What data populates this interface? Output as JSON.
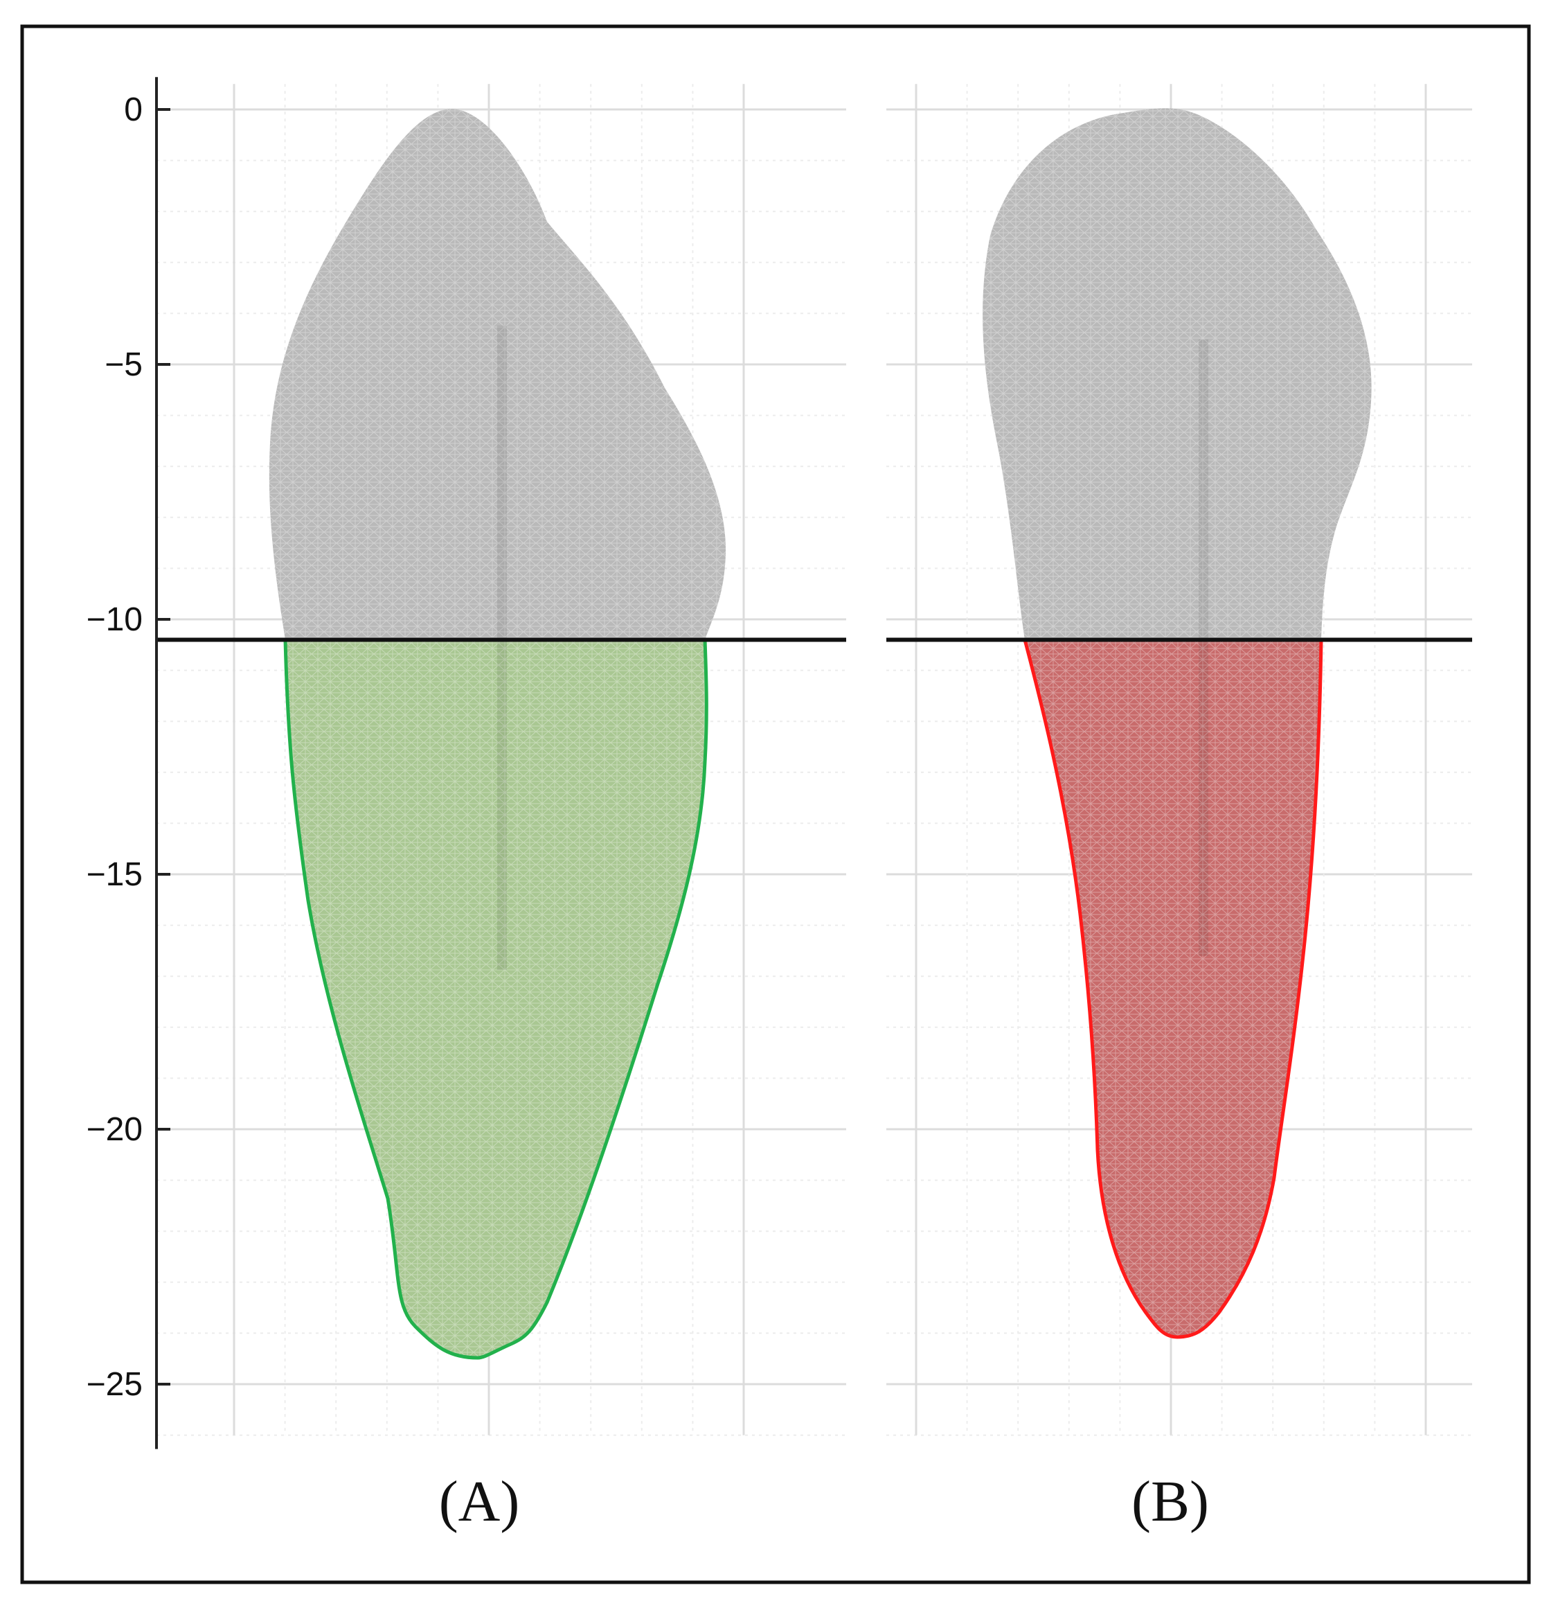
{
  "figure": {
    "y_axis": {
      "ticks": [
        0,
        -5,
        -10,
        -15,
        -20,
        -25
      ],
      "tick_labels": [
        "0",
        "−5",
        "−10",
        "−15",
        "−20",
        "−25"
      ],
      "range": [
        -26,
        0.5
      ]
    },
    "cut_level": -10.4,
    "panels": [
      {
        "id": "A",
        "caption": "(A)",
        "crown_color": "#b9b9b9",
        "root_fill": "#a9c792",
        "root_outline": "#22b14c"
      },
      {
        "id": "B",
        "caption": "(B)",
        "crown_color": "#b9b9b9",
        "root_fill": "#c86b6b",
        "root_outline": "#ff1a1a"
      }
    ],
    "colors": {
      "grid_major": "#dcdcdc",
      "grid_minor": "#ececec",
      "cut_line": "#111111",
      "frame": "#111111"
    }
  }
}
